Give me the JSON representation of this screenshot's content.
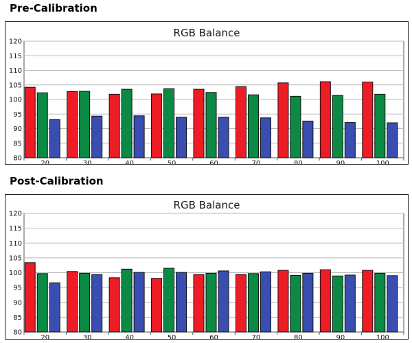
{
  "sections": {
    "pre": {
      "heading": "Pre-Calibration"
    },
    "post": {
      "heading": "Post-Calibration"
    }
  },
  "colors": {
    "red": "#ee1c25",
    "green": "#0a8a45",
    "blue": "#3a4db0"
  },
  "chart_data": [
    {
      "type": "bar",
      "title": "RGB Balance",
      "xlabel": "",
      "ylabel": "",
      "categories": [
        "20",
        "30",
        "40",
        "50",
        "60",
        "70",
        "80",
        "90",
        "100"
      ],
      "yticks": [
        "80",
        "85",
        "90",
        "95",
        "100",
        "105",
        "110",
        "115",
        "120"
      ],
      "ylim": [
        80,
        120
      ],
      "grid": true,
      "series": [
        {
          "values": [
            104.2,
            102.7,
            101.8,
            101.9,
            103.5,
            104.4,
            105.7,
            106.1,
            106.0
          ],
          "color": "#ee1c25"
        },
        {
          "values": [
            102.3,
            102.8,
            103.5,
            103.7,
            102.4,
            101.6,
            101.1,
            101.4,
            101.8
          ],
          "color": "#0a8a45"
        },
        {
          "values": [
            93.1,
            94.3,
            94.4,
            93.9,
            93.9,
            93.7,
            92.6,
            92.1,
            92.0
          ],
          "color": "#3a4db0"
        }
      ]
    },
    {
      "type": "bar",
      "title": "RGB Balance",
      "xlabel": "",
      "ylabel": "",
      "categories": [
        "20",
        "30",
        "40",
        "50",
        "60",
        "70",
        "80",
        "90",
        "100"
      ],
      "yticks": [
        "80",
        "85",
        "90",
        "95",
        "100",
        "105",
        "110",
        "115",
        "120"
      ],
      "ylim": [
        80,
        120
      ],
      "grid": true,
      "series": [
        {
          "values": [
            103.4,
            100.4,
            98.3,
            98.1,
            99.4,
            99.4,
            100.8,
            101.0,
            100.8
          ],
          "color": "#ee1c25"
        },
        {
          "values": [
            99.7,
            99.8,
            101.2,
            101.5,
            99.8,
            99.7,
            99.1,
            98.9,
            99.8
          ],
          "color": "#0a8a45"
        },
        {
          "values": [
            96.6,
            99.4,
            100.1,
            100.1,
            100.6,
            100.3,
            99.8,
            99.2,
            99.0
          ],
          "color": "#3a4db0"
        }
      ]
    }
  ]
}
